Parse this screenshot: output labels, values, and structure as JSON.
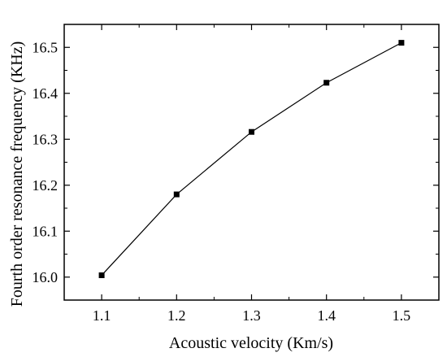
{
  "chart_data": {
    "type": "line",
    "xlabel": "Acoustic velocity (Km/s)",
    "ylabel": "Fourth order resonance frequency (KHz)",
    "x": [
      1.1,
      1.2,
      1.3,
      1.4,
      1.5
    ],
    "series": [
      {
        "values": [
          16.004,
          16.18,
          16.316,
          16.423,
          16.51
        ]
      }
    ],
    "xticks": [
      "1.1",
      "1.2",
      "1.3",
      "1.4",
      "1.5"
    ],
    "yticks": [
      "16.0",
      "16.1",
      "16.2",
      "16.3",
      "16.4",
      "16.5"
    ],
    "xlim": [
      1.05,
      1.55
    ],
    "ylim": [
      15.95,
      16.55
    ],
    "grid": false,
    "marker": "square",
    "colors": {
      "line": "#000000",
      "marker": "#000000",
      "frame": "#000000"
    }
  }
}
